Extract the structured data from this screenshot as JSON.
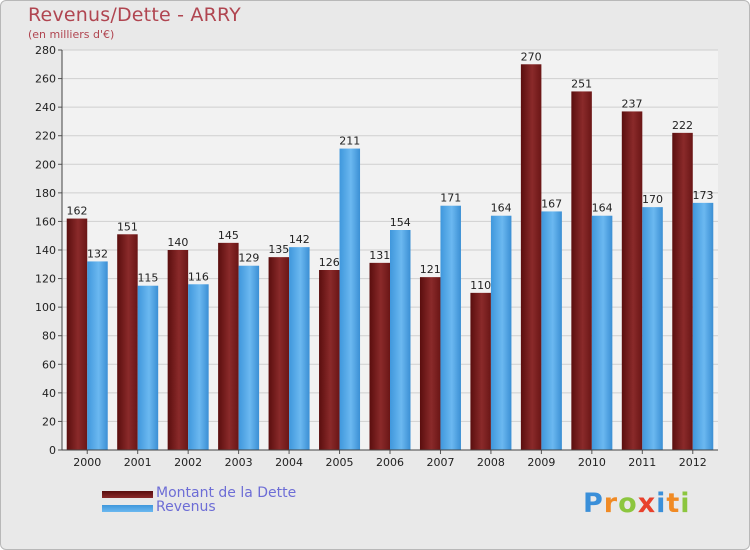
{
  "header": {
    "title": "Revenus/Dette - ARRY",
    "subtitle": "(en milliers d'€)"
  },
  "chart_data": {
    "type": "bar",
    "categories": [
      "2000",
      "2001",
      "2002",
      "2003",
      "2004",
      "2005",
      "2006",
      "2007",
      "2008",
      "2009",
      "2010",
      "2011",
      "2012"
    ],
    "series": [
      {
        "name": "Montant de la Dette",
        "color": "#7a1c1c",
        "values": [
          162,
          151,
          140,
          145,
          135,
          126,
          131,
          121,
          110,
          270,
          251,
          237,
          222
        ]
      },
      {
        "name": "Revenus",
        "color": "#4aa3e6",
        "values": [
          132,
          115,
          116,
          129,
          142,
          211,
          154,
          171,
          164,
          167,
          164,
          170,
          173
        ]
      }
    ],
    "yticks": [
      "0",
      "20",
      "40",
      "60",
      "80",
      "100",
      "120",
      "140",
      "160",
      "180",
      "200",
      "220",
      "240",
      "260",
      "280"
    ],
    "ylim": [
      0,
      280
    ],
    "grid": true,
    "legend": "bottom-left"
  },
  "logo": {
    "text": "Proxiti",
    "letter_colors": [
      "#3a8fd9",
      "#f08a24",
      "#8cc63f",
      "#e8412c",
      "#3a8fd9",
      "#f08a24",
      "#8cc63f"
    ]
  }
}
